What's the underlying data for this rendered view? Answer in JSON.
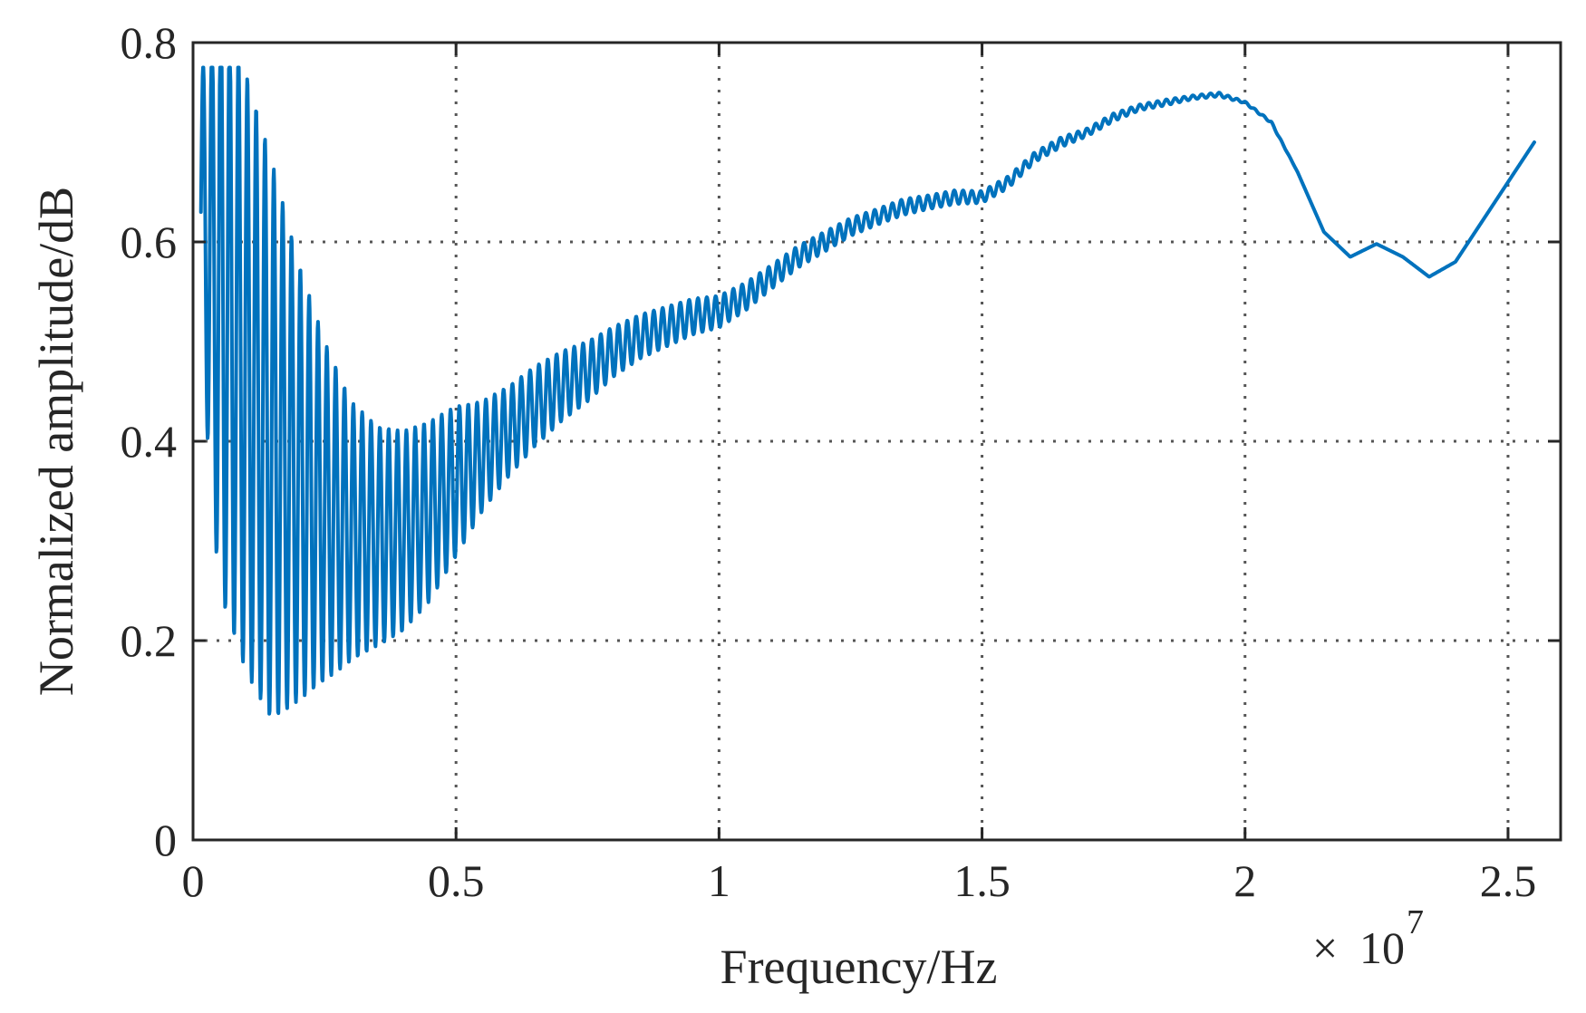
{
  "chart_data": {
    "type": "line",
    "xlabel": "Frequency/Hz",
    "ylabel": "Normalized amplitude/dB",
    "x_multiplier": {
      "times": "×",
      "base": "10",
      "exponent": "7"
    },
    "xlim": [
      0,
      2.6
    ],
    "ylim": [
      0,
      0.8
    ],
    "x_ticks": [
      0,
      0.5,
      1,
      1.5,
      2,
      2.5
    ],
    "x_tick_labels": [
      "0",
      "0.5",
      "1",
      "1.5",
      "2",
      "2.5"
    ],
    "y_ticks": [
      0,
      0.2,
      0.4,
      0.6,
      0.8
    ],
    "y_tick_labels": [
      "0",
      "0.2",
      "0.4",
      "0.6",
      "0.8"
    ],
    "grid": true,
    "series": [
      {
        "color": "#0072BD",
        "x": [
          0.015,
          0.05,
          0.1,
          0.15,
          0.2,
          0.25,
          0.3,
          0.35,
          0.4,
          0.45,
          0.5,
          0.55,
          0.6,
          0.65,
          0.7,
          0.75,
          0.8,
          0.85,
          0.9,
          0.95,
          1.0,
          1.05,
          1.1,
          1.15,
          1.2,
          1.25,
          1.3,
          1.35,
          1.4,
          1.45,
          1.5,
          1.55,
          1.6,
          1.65,
          1.7,
          1.75,
          1.8,
          1.85,
          1.9,
          1.95,
          2.0,
          2.05,
          2.1,
          2.15,
          2.2,
          2.25,
          2.3,
          2.35,
          2.4,
          2.45,
          2.5,
          2.55
        ],
        "y": [
          0.63,
          0.55,
          0.47,
          0.4,
          0.36,
          0.33,
          0.31,
          0.305,
          0.31,
          0.33,
          0.36,
          0.385,
          0.41,
          0.435,
          0.455,
          0.47,
          0.49,
          0.505,
          0.515,
          0.525,
          0.53,
          0.545,
          0.565,
          0.585,
          0.6,
          0.615,
          0.625,
          0.635,
          0.64,
          0.645,
          0.645,
          0.66,
          0.685,
          0.7,
          0.71,
          0.725,
          0.735,
          0.74,
          0.745,
          0.748,
          0.74,
          0.72,
          0.67,
          0.61,
          0.585,
          0.598,
          0.585,
          0.565,
          0.58,
          0.62,
          0.66,
          0.7
        ],
        "ripple_amplitude": [
          0.14,
          0.3,
          0.3,
          0.28,
          0.22,
          0.17,
          0.13,
          0.11,
          0.1,
          0.09,
          0.075,
          0.055,
          0.045,
          0.04,
          0.035,
          0.03,
          0.025,
          0.022,
          0.02,
          0.018,
          0.016,
          0.014,
          0.012,
          0.011,
          0.01,
          0.009,
          0.008,
          0.008,
          0.007,
          0.007,
          0.006,
          0.006,
          0.005,
          0.005,
          0.004,
          0.004,
          0.003,
          0.003,
          0.002,
          0.002,
          0.001,
          0.001,
          0,
          0,
          0,
          0,
          0,
          0,
          0,
          0,
          0,
          0
        ],
        "ripple_period": 0.0168
      }
    ]
  }
}
